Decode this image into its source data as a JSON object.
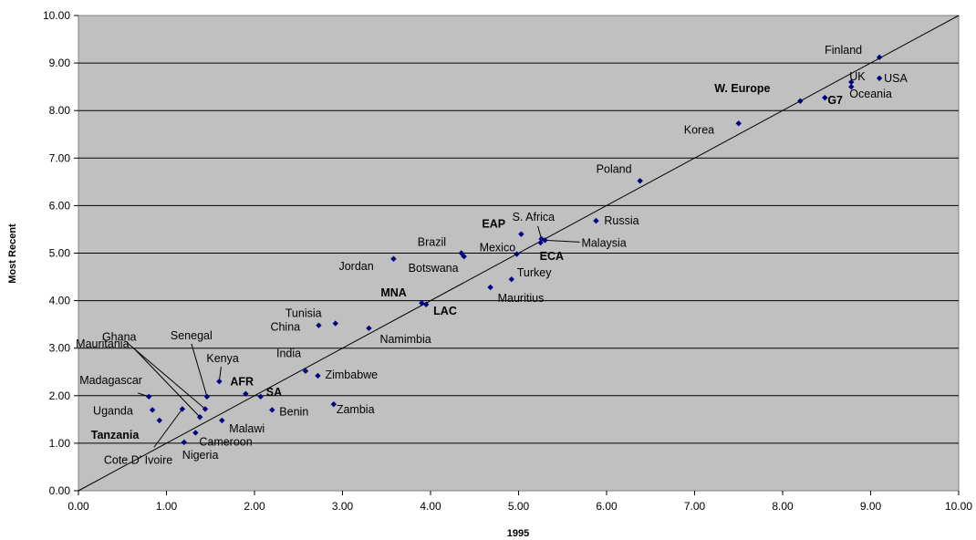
{
  "chart_data": {
    "type": "scatter",
    "xlabel": "1995",
    "ylabel": "Most Recent",
    "xlim": [
      0,
      10
    ],
    "ylim": [
      0,
      10
    ],
    "x_ticks": [
      "0.00",
      "1.00",
      "2.00",
      "3.00",
      "4.00",
      "5.00",
      "6.00",
      "7.00",
      "8.00",
      "9.00",
      "10.00"
    ],
    "y_ticks": [
      "0.00",
      "1.00",
      "2.00",
      "3.00",
      "4.00",
      "5.00",
      "6.00",
      "7.00",
      "8.00",
      "9.00",
      "10.00"
    ],
    "grid": "horizontal",
    "reference_line": "y = x",
    "colors": {
      "plot_background": "#c0c0c0",
      "marker": "#000080",
      "region_label": "#1c1c9c",
      "afr_label": "#ff0000",
      "tanzania_label": "#800000"
    },
    "points": [
      {
        "label": "Finland",
        "x": 9.1,
        "y": 9.12,
        "style": "normal"
      },
      {
        "label": "UK",
        "x": 8.78,
        "y": 8.6,
        "style": "normal"
      },
      {
        "label": "USA",
        "x": 9.1,
        "y": 8.68,
        "style": "normal"
      },
      {
        "label": "Oceania",
        "x": 8.78,
        "y": 8.5,
        "style": "normal"
      },
      {
        "label": "G7",
        "x": 8.48,
        "y": 8.27,
        "style": "region"
      },
      {
        "label": "W. Europe",
        "x": 8.2,
        "y": 8.2,
        "style": "region"
      },
      {
        "label": "Korea",
        "x": 7.5,
        "y": 7.73,
        "style": "normal"
      },
      {
        "label": "Poland",
        "x": 6.38,
        "y": 6.52,
        "style": "normal"
      },
      {
        "label": "Russia",
        "x": 5.88,
        "y": 5.68,
        "style": "normal"
      },
      {
        "label": "S. Africa",
        "x": 5.26,
        "y": 5.3,
        "style": "normal"
      },
      {
        "label": "EAP",
        "x": 5.03,
        "y": 5.4,
        "style": "region"
      },
      {
        "label": "Malaysia",
        "x": 5.3,
        "y": 5.27,
        "style": "normal"
      },
      {
        "label": "ECA",
        "x": 5.25,
        "y": 5.22,
        "style": "region"
      },
      {
        "label": "Mexico",
        "x": 4.98,
        "y": 4.98,
        "style": "normal"
      },
      {
        "label": "Brazil",
        "x": 4.35,
        "y": 5.0,
        "style": "normal"
      },
      {
        "label": "Botswana",
        "x": 4.38,
        "y": 4.93,
        "style": "normal"
      },
      {
        "label": "Jordan",
        "x": 3.58,
        "y": 4.88,
        "style": "normal"
      },
      {
        "label": "Turkey",
        "x": 4.92,
        "y": 4.45,
        "style": "normal"
      },
      {
        "label": "Mauritius",
        "x": 4.68,
        "y": 4.28,
        "style": "normal"
      },
      {
        "label": "MNA",
        "x": 3.9,
        "y": 3.95,
        "style": "region"
      },
      {
        "label": "LAC",
        "x": 3.95,
        "y": 3.92,
        "style": "region"
      },
      {
        "label": "Tunisia",
        "x": 2.92,
        "y": 3.52,
        "style": "normal"
      },
      {
        "label": "China",
        "x": 2.73,
        "y": 3.48,
        "style": "normal"
      },
      {
        "label": "Namimbia",
        "x": 3.3,
        "y": 3.42,
        "style": "normal"
      },
      {
        "label": "India",
        "x": 2.58,
        "y": 2.52,
        "style": "normal"
      },
      {
        "label": "Zimbabwe",
        "x": 2.72,
        "y": 2.42,
        "style": "normal"
      },
      {
        "label": "Kenya",
        "x": 1.6,
        "y": 2.3,
        "style": "normal"
      },
      {
        "label": "AFR",
        "x": 1.9,
        "y": 2.04,
        "style": "afr"
      },
      {
        "label": "SA",
        "x": 2.07,
        "y": 1.98,
        "style": "region"
      },
      {
        "label": "Senegal",
        "x": 1.46,
        "y": 1.98,
        "style": "normal"
      },
      {
        "label": "Ghana",
        "x": 1.44,
        "y": 1.72,
        "style": "normal"
      },
      {
        "label": "Madagascar",
        "x": 0.8,
        "y": 1.98,
        "style": "normal"
      },
      {
        "label": "Mauritania",
        "x": 1.38,
        "y": 1.55,
        "style": "normal"
      },
      {
        "label": "Uganda",
        "x": 0.84,
        "y": 1.7,
        "style": "normal"
      },
      {
        "label": "Cote D' Ivoire",
        "x": 1.18,
        "y": 1.72,
        "style": "normal"
      },
      {
        "label": "Tanzania",
        "x": 0.92,
        "y": 1.48,
        "style": "tanzania"
      },
      {
        "label": "Benin",
        "x": 2.2,
        "y": 1.7,
        "style": "normal"
      },
      {
        "label": "Zambia",
        "x": 2.9,
        "y": 1.82,
        "style": "normal"
      },
      {
        "label": "Malawi",
        "x": 1.63,
        "y": 1.48,
        "style": "normal"
      },
      {
        "label": "Cameroon",
        "x": 1.33,
        "y": 1.22,
        "style": "normal"
      },
      {
        "label": "Nigeria",
        "x": 1.2,
        "y": 1.02,
        "style": "normal"
      }
    ]
  }
}
